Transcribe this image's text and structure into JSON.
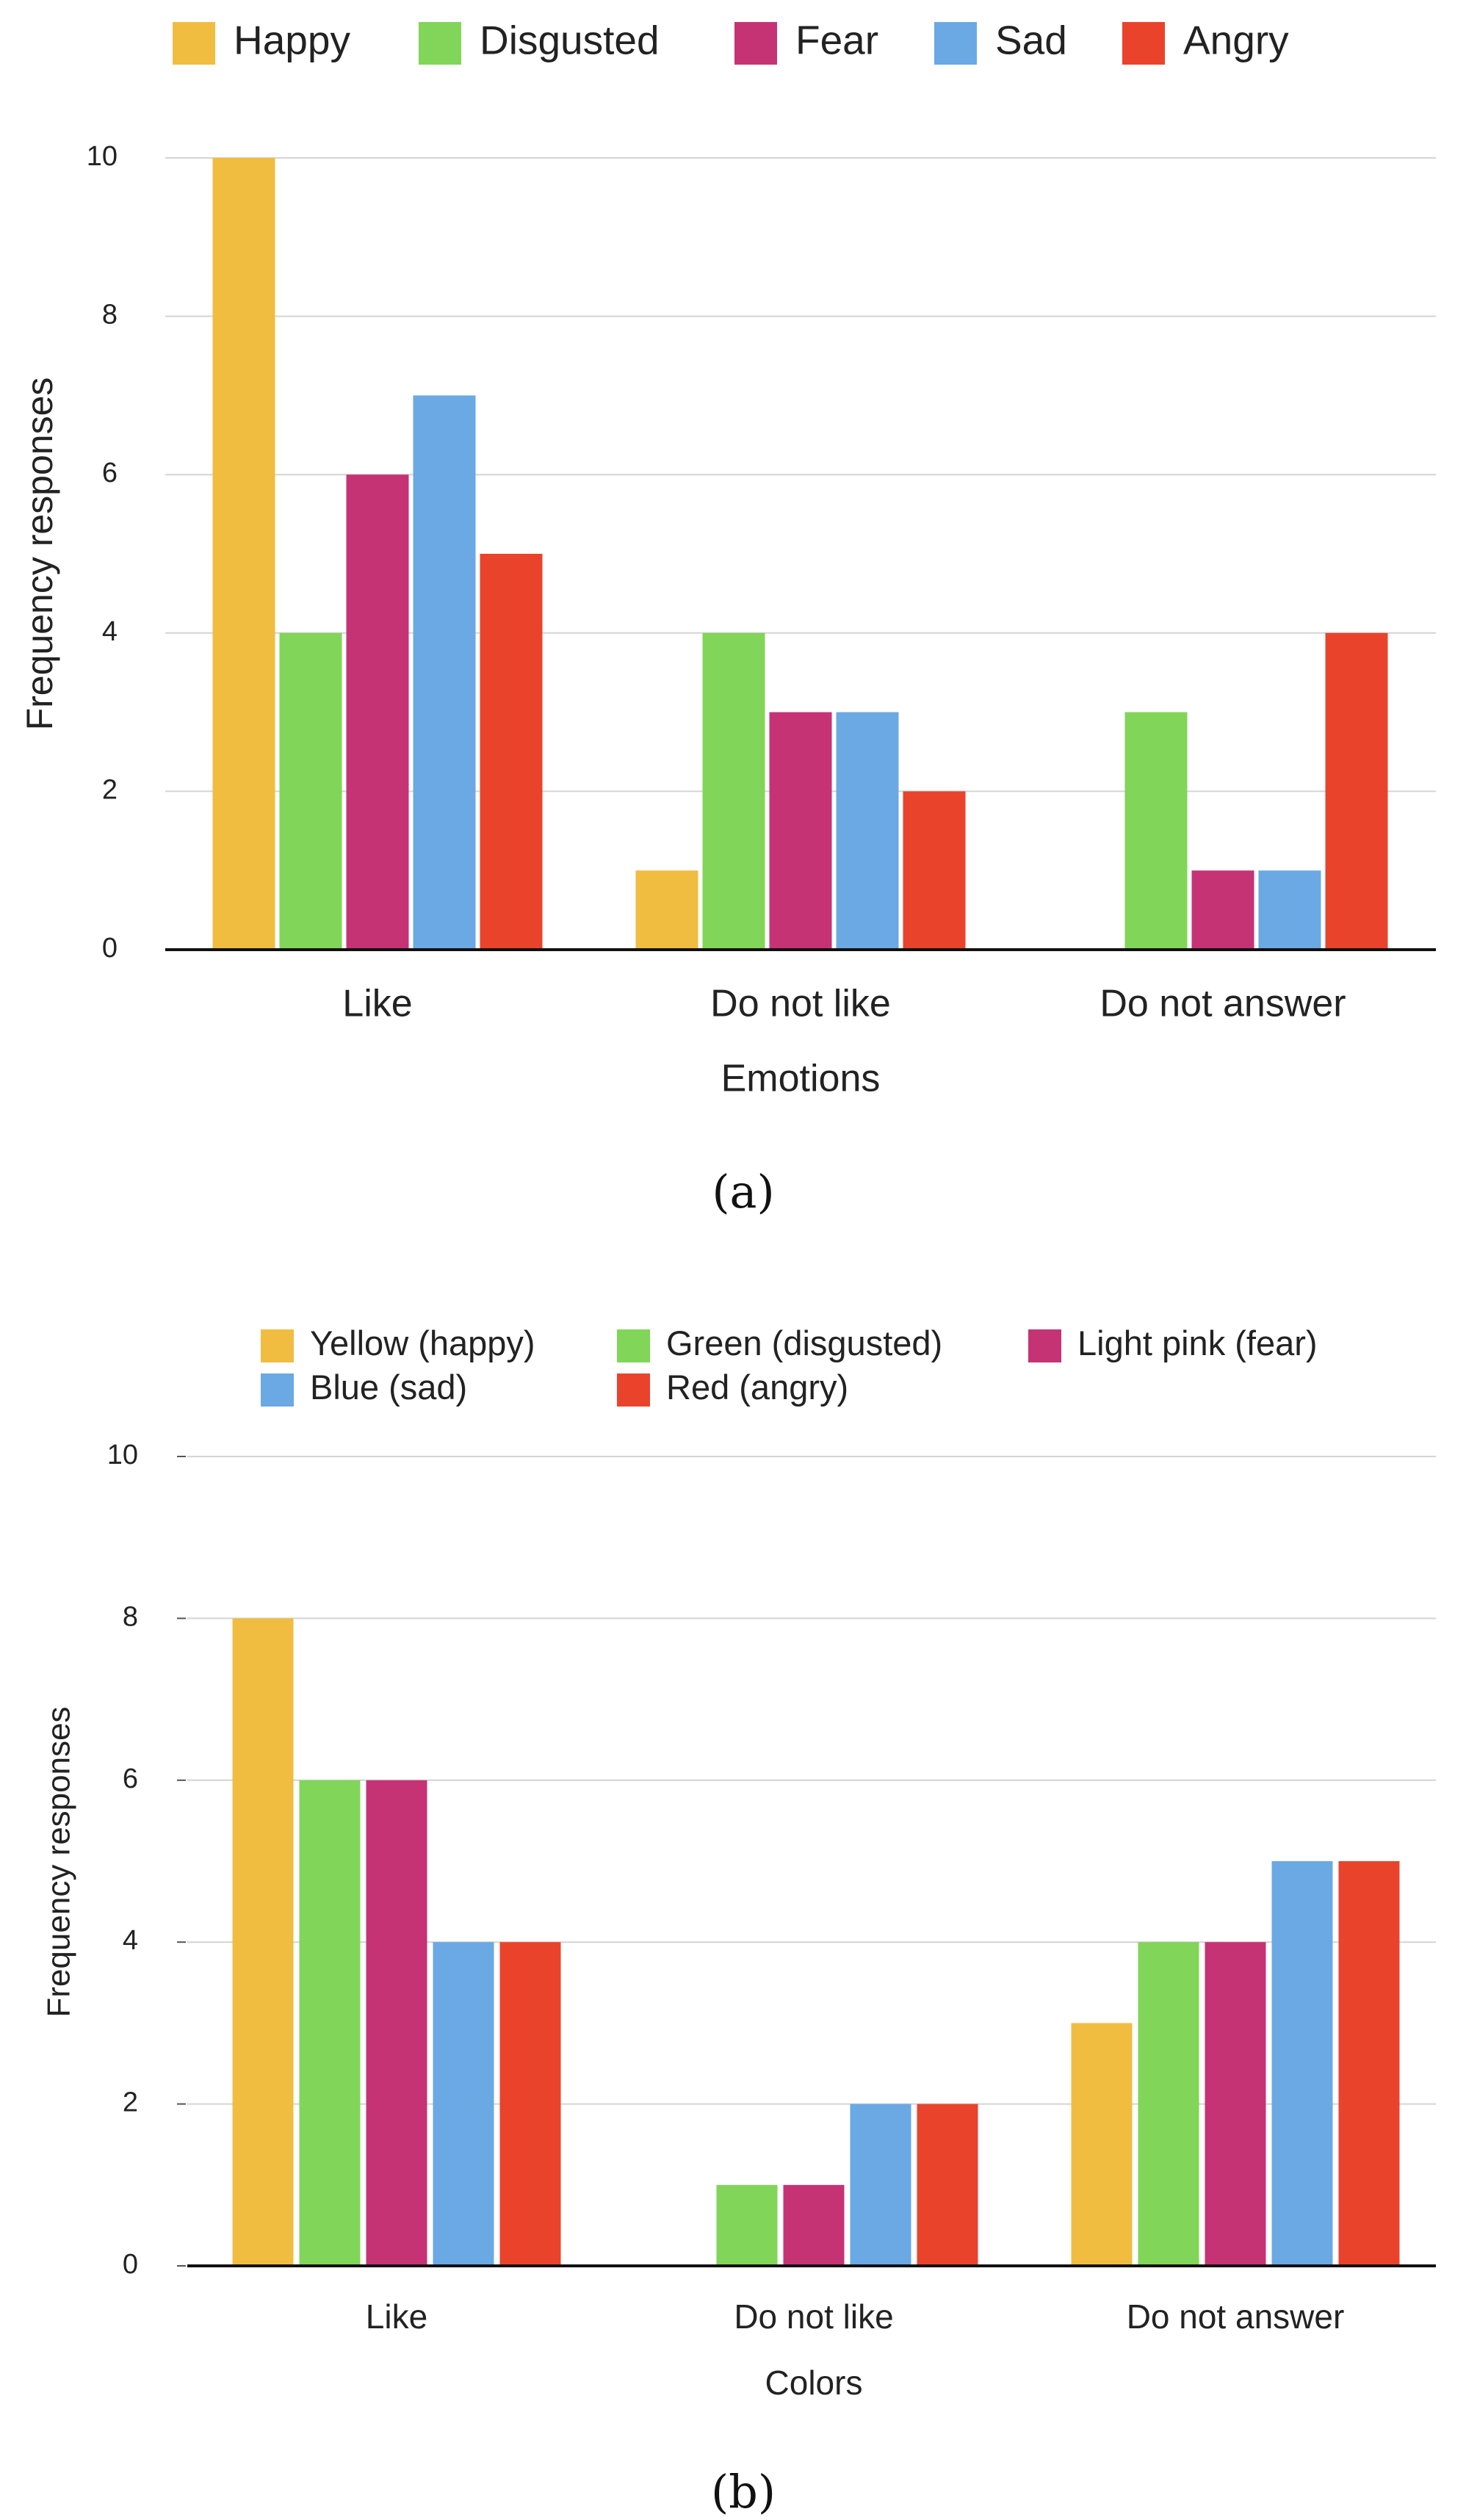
{
  "chart_data": [
    {
      "type": "bar",
      "panel": "(a)",
      "title": "",
      "xlabel": "Emotions",
      "ylabel": "Frequency responses",
      "ylim": [
        0,
        10
      ],
      "yticks": [
        0,
        2,
        4,
        6,
        8,
        10
      ],
      "grid": true,
      "legend_position": "top",
      "categories": [
        "Like",
        "Do not like",
        "Do not answer"
      ],
      "series": [
        {
          "name": "Happy",
          "color": "#F0BD41",
          "values": [
            10,
            1,
            0
          ]
        },
        {
          "name": "Disgusted",
          "color": "#81D558",
          "values": [
            4,
            4,
            3
          ]
        },
        {
          "name": "Fear",
          "color": "#C53375",
          "values": [
            6,
            3,
            1
          ]
        },
        {
          "name": "Sad",
          "color": "#6AA9E4",
          "values": [
            7,
            3,
            1
          ]
        },
        {
          "name": "Angry",
          "color": "#E9432C",
          "values": [
            5,
            2,
            4
          ]
        }
      ]
    },
    {
      "type": "bar",
      "panel": "(b)",
      "title": "",
      "xlabel": "Colors",
      "ylabel": "Frequency responses",
      "ylim": [
        0,
        10
      ],
      "yticks": [
        0,
        2,
        4,
        6,
        8,
        10
      ],
      "grid": true,
      "legend_position": "top",
      "categories": [
        "Like",
        "Do not like",
        "Do not answer"
      ],
      "series": [
        {
          "name": "Yellow (happy)",
          "color": "#F0BD41",
          "values": [
            8,
            0,
            3
          ]
        },
        {
          "name": "Green (disgusted)",
          "color": "#81D558",
          "values": [
            6,
            1,
            4
          ]
        },
        {
          "name": "Light pink (fear)",
          "color": "#C53375",
          "values": [
            6,
            1,
            4
          ]
        },
        {
          "name": "Blue (sad)",
          "color": "#6AA9E4",
          "values": [
            4,
            2,
            5
          ]
        },
        {
          "name": "Red (angry)",
          "color": "#E9432C",
          "values": [
            4,
            2,
            5
          ]
        }
      ]
    }
  ]
}
